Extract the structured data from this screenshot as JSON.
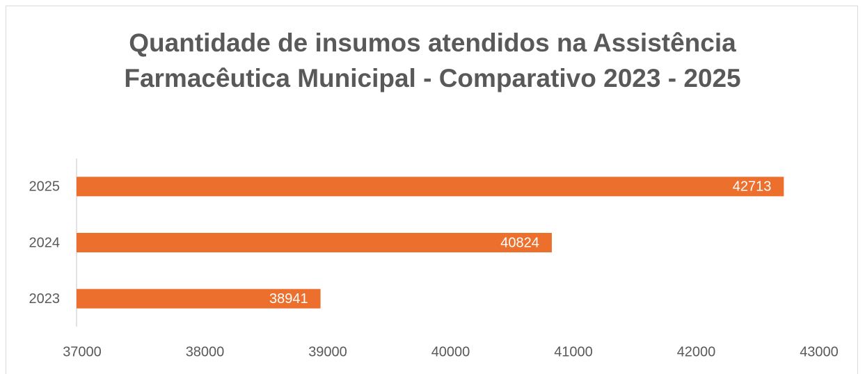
{
  "chart_data": {
    "type": "hbar",
    "title": "Quantidade de insumos atendidos na Assistência Farmacêutica Municipal - Comparativo 2023 - 2025",
    "categories": [
      "2023",
      "2024",
      "2025"
    ],
    "values": [
      38941,
      40824,
      42713
    ],
    "color": "#ec6f2d",
    "xlim": [
      37000,
      43000
    ],
    "xticks": [
      37000,
      38000,
      39000,
      40000,
      41000,
      42000,
      43000
    ],
    "grid": false
  }
}
